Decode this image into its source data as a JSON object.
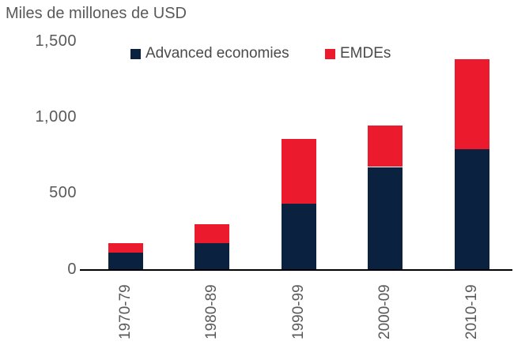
{
  "title": "Miles de millones de USD",
  "colors": {
    "advanced_economies": "#0a2240",
    "emdes": "#eb1b2d",
    "text_gray": "#595959",
    "axis_black": "#000000",
    "background": "#ffffff"
  },
  "legend": {
    "items": [
      {
        "label": "Advanced economies",
        "swatch_color": "#0a2240"
      },
      {
        "label": "EMDEs",
        "swatch_color": "#eb1b2d"
      }
    ]
  },
  "chart_data": {
    "type": "bar",
    "stacked": true,
    "title": "Miles de millones de USD",
    "ylabel": "Miles de millones de USD",
    "xlabel": "",
    "categories": [
      "1970-79",
      "1980-89",
      "1990-99",
      "2000-09",
      "2010-19"
    ],
    "series": [
      {
        "name": "Advanced economies",
        "color": "#0a2240",
        "values": [
          112,
          176,
          435,
          675,
          792
        ]
      },
      {
        "name": "EMDEs",
        "color": "#eb1b2d",
        "values": [
          66,
          125,
          425,
          272,
          590
        ]
      }
    ],
    "totals": [
      178,
      301,
      860,
      947,
      1382
    ],
    "ylim": [
      0,
      1500
    ],
    "yticks": [
      0,
      500,
      1000,
      1500
    ],
    "ytick_labels": [
      "0",
      "500",
      "1,000",
      "1,500"
    ],
    "grid": false,
    "legend_position": "top-center",
    "x_tick_label_rotation": -90
  }
}
